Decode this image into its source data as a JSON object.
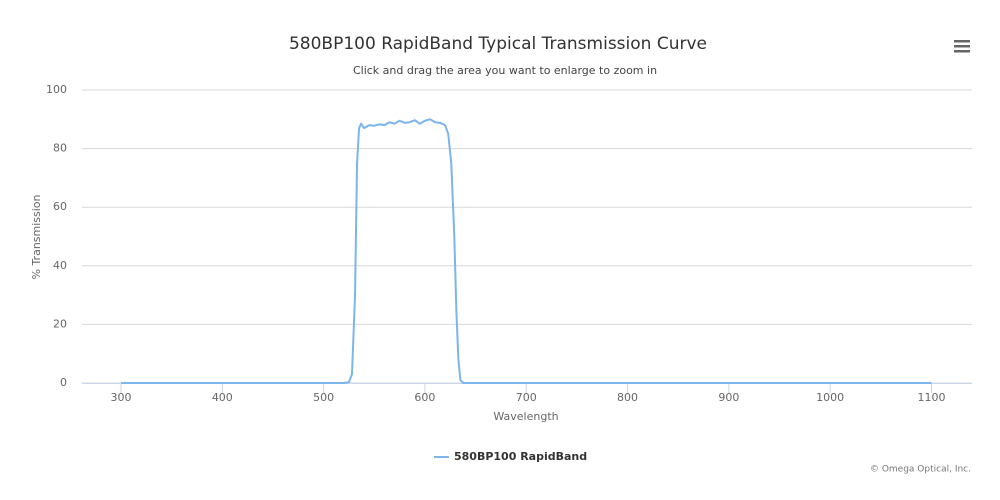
{
  "chart_data": {
    "type": "line",
    "title": "580BP100 RapidBand Typical Transmission Curve",
    "subtitle": "Click and drag the area you want to enlarge to zoom in",
    "x_label": "Wavelength",
    "y_label": "% Transmission",
    "credit": "© Omega Optical, Inc.",
    "x": [
      300,
      400,
      500,
      520,
      525,
      528,
      531,
      533,
      535,
      537,
      540,
      545,
      550,
      555,
      560,
      565,
      570,
      575,
      580,
      585,
      590,
      595,
      600,
      605,
      610,
      615,
      620,
      623,
      626,
      629,
      631,
      633,
      635,
      638,
      700,
      800,
      900,
      1000,
      1100
    ],
    "series": [
      {
        "name": "580BP100 RapidBand",
        "color": "#7cb5ec",
        "values": [
          0,
          0,
          0,
          0,
          0.3,
          3,
          30,
          75,
          87,
          88.5,
          87,
          88,
          87.8,
          88.3,
          88,
          89,
          88.5,
          89.5,
          88.8,
          89,
          89.7,
          88.5,
          89.5,
          90,
          89,
          88.8,
          88,
          85,
          75,
          50,
          25,
          8,
          1,
          0,
          0,
          0,
          0,
          0,
          0
        ]
      }
    ],
    "xlim": [
      261.5,
      1140
    ],
    "ylim": [
      0,
      100
    ],
    "xticks": [
      300,
      400,
      500,
      600,
      700,
      800,
      900,
      1000,
      1100
    ],
    "yticks": [
      0,
      20,
      40,
      60,
      80,
      100
    ],
    "grid": true,
    "legend": "bottom"
  }
}
